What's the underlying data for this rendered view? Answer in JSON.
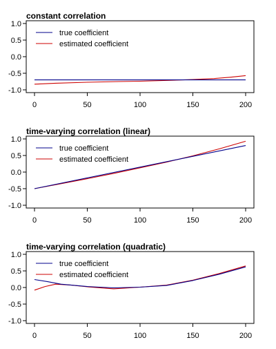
{
  "colors": {
    "true": "#00008B",
    "estimated": "#CC0000",
    "axis": "#000000"
  },
  "chart_data": [
    {
      "type": "line",
      "title": "constant correlation",
      "xlim": [
        0,
        200
      ],
      "ylim": [
        -1.0,
        1.0
      ],
      "x_ticks": [
        0,
        50,
        100,
        150,
        200
      ],
      "y_ticks": [
        -1.0,
        -0.5,
        0.0,
        0.5,
        1.0
      ],
      "y_tick_labels": [
        "-1.0",
        "-0.5",
        "0.0",
        "0.5",
        "1.0"
      ],
      "legend": {
        "position": "top-left",
        "entries": [
          "true coefficient",
          "estimated coefficient"
        ]
      },
      "grid": false,
      "series": [
        {
          "name": "true coefficient",
          "color": "#00008B",
          "x": [
            0,
            200
          ],
          "y": [
            -0.7,
            -0.7
          ]
        },
        {
          "name": "estimated coefficient",
          "color": "#CC0000",
          "x": [
            0,
            20,
            50,
            80,
            100,
            120,
            150,
            170,
            185,
            200
          ],
          "y": [
            -0.83,
            -0.8,
            -0.77,
            -0.75,
            -0.74,
            -0.72,
            -0.69,
            -0.66,
            -0.62,
            -0.57
          ]
        }
      ]
    },
    {
      "type": "line",
      "title": "time-varying correlation (linear)",
      "xlim": [
        0,
        200
      ],
      "ylim": [
        -1.0,
        1.0
      ],
      "x_ticks": [
        0,
        50,
        100,
        150,
        200
      ],
      "y_ticks": [
        -1.0,
        -0.5,
        0.0,
        0.5,
        1.0
      ],
      "y_tick_labels": [
        "-1.0",
        "-0.5",
        "0.0",
        "0.5",
        "1.0"
      ],
      "legend": {
        "position": "top-left",
        "entries": [
          "true coefficient",
          "estimated coefficient"
        ]
      },
      "grid": false,
      "series": [
        {
          "name": "true coefficient",
          "color": "#00008B",
          "x": [
            0,
            200
          ],
          "y": [
            -0.5,
            0.8
          ]
        },
        {
          "name": "estimated coefficient",
          "color": "#CC0000",
          "x": [
            0,
            25,
            50,
            75,
            100,
            125,
            150,
            175,
            200
          ],
          "y": [
            -0.5,
            -0.35,
            -0.2,
            -0.04,
            0.13,
            0.3,
            0.49,
            0.7,
            0.93
          ]
        }
      ]
    },
    {
      "type": "line",
      "title": "time-varying correlation (quadratic)",
      "xlim": [
        0,
        200
      ],
      "ylim": [
        -1.0,
        1.0
      ],
      "x_ticks": [
        0,
        50,
        100,
        150,
        200
      ],
      "y_ticks": [
        -1.0,
        -0.5,
        0.0,
        0.5,
        1.0
      ],
      "y_tick_labels": [
        "-1.0",
        "-0.5",
        "0.0",
        "0.5",
        "1.0"
      ],
      "legend": {
        "position": "top-left",
        "entries": [
          "true coefficient",
          "estimated coefficient"
        ]
      },
      "grid": false,
      "series": [
        {
          "name": "true coefficient",
          "color": "#00008B",
          "x": [
            0,
            12,
            25,
            50,
            75,
            100,
            125,
            150,
            175,
            200
          ],
          "y": [
            0.24,
            0.18,
            0.1,
            0.03,
            -0.01,
            0.01,
            0.06,
            0.21,
            0.4,
            0.62
          ]
        },
        {
          "name": "estimated coefficient",
          "color": "#CC0000",
          "x": [
            0,
            10,
            20,
            35,
            50,
            75,
            100,
            125,
            150,
            175,
            200
          ],
          "y": [
            -0.08,
            0.03,
            0.1,
            0.07,
            0.02,
            -0.04,
            0.01,
            0.07,
            0.22,
            0.42,
            0.65
          ]
        }
      ]
    }
  ]
}
